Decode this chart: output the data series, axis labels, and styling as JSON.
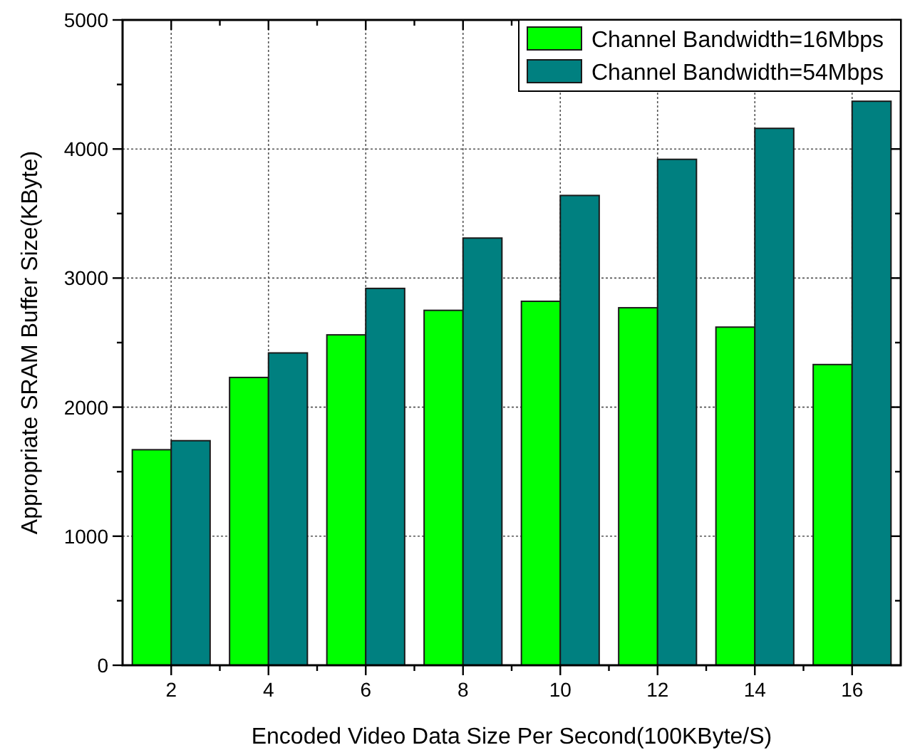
{
  "chart_data": {
    "type": "bar",
    "xlabel": "Encoded Video Data Size Per Second(100KByte/S)",
    "ylabel": "Appropriate SRAM Buffer Size(KByte)",
    "x": [
      2,
      4,
      6,
      8,
      10,
      12,
      14,
      16
    ],
    "series": [
      {
        "name": "Channel Bandwidth=16Mbps",
        "color": "#00ff00",
        "values": [
          1670,
          2230,
          2560,
          2750,
          2820,
          2770,
          2620,
          2330
        ]
      },
      {
        "name": "Channel Bandwidth=54Mbps",
        "color": "#008080",
        "values": [
          1740,
          2420,
          2920,
          3310,
          3640,
          3920,
          4160,
          4370
        ]
      }
    ],
    "xlim": [
      1,
      17
    ],
    "xticks": [
      2,
      {
        "value": 3,
        "label": null
      },
      4,
      {
        "value": 5,
        "label": null
      },
      6,
      {
        "value": 7,
        "label": null
      },
      8,
      {
        "value": 9,
        "label": null
      },
      10,
      {
        "value": 11,
        "label": null
      },
      12,
      {
        "value": 13,
        "label": null
      },
      14,
      {
        "value": 15,
        "label": null
      },
      16
    ],
    "ylim": [
      0,
      5000
    ],
    "yticks": [
      0,
      {
        "value": 500,
        "label": null
      },
      1000,
      {
        "value": 1500,
        "label": null
      },
      2000,
      {
        "value": 2500,
        "label": null
      },
      3000,
      {
        "value": 3500,
        "label": null
      },
      4000,
      {
        "value": 4500,
        "label": null
      },
      5000
    ],
    "grid": true,
    "legend": "top right"
  }
}
